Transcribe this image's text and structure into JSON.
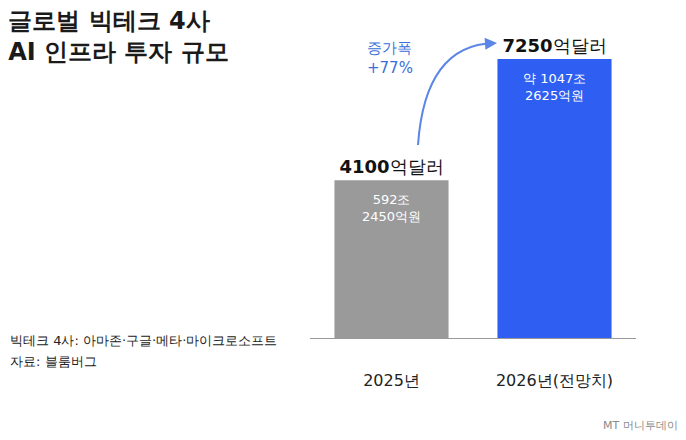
{
  "chart_data": {
    "type": "bar",
    "title": "글로벌 빅테크 4사 AI 인프라 투자 규모",
    "categories": [
      "2025년",
      "2026년(전망치)"
    ],
    "values": [
      4100,
      7250
    ],
    "value_labels": [
      "4100억달러",
      "7250억달러"
    ],
    "inner_labels": [
      "592조 2450억원",
      "약 1047조 2625억원"
    ],
    "data_labels": true,
    "colors": [
      "#9a9a9a",
      "#2f5ef2"
    ],
    "ylim": [
      0,
      8000
    ],
    "tick_labels": "x",
    "annotations": [
      {
        "text": "증가폭 +77%"
      }
    ],
    "notes": [
      "빅테크 4사: 아마존·구글·메타·마이크로소프트",
      "자료: 블룸버그"
    ],
    "watermark": "MT 머니투데이"
  }
}
